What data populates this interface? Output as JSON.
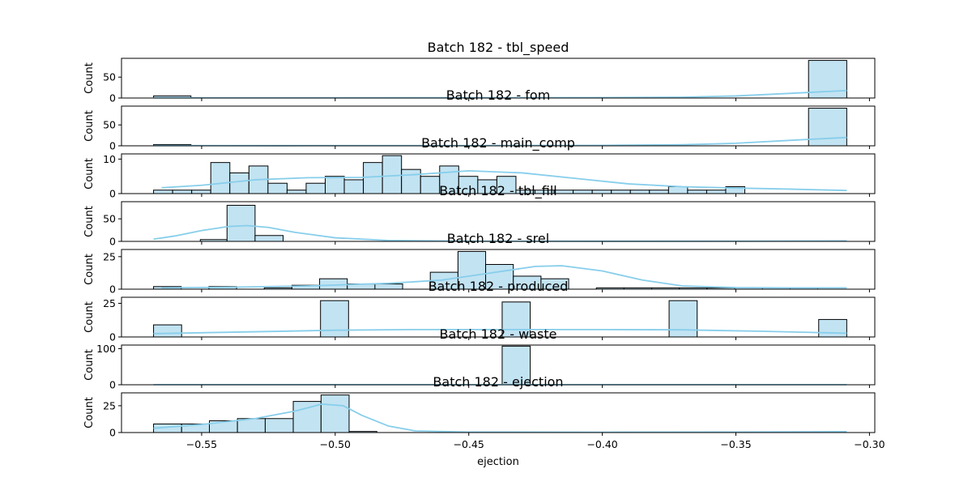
{
  "figure": {
    "xlabel": "ejection"
  },
  "chart_data": {
    "type": "bar",
    "subtype": "histogram-with-kde-stacked-panels",
    "shared_x": true,
    "xlim": [
      -0.58,
      -0.298
    ],
    "xticks": [
      {
        "v": -0.55,
        "label": "−0.55"
      },
      {
        "v": -0.5,
        "label": "−0.50"
      },
      {
        "v": -0.45,
        "label": "−0.45"
      },
      {
        "v": -0.4,
        "label": "−0.40"
      },
      {
        "v": -0.35,
        "label": "−0.35"
      },
      {
        "v": -0.3,
        "label": "−0.30"
      }
    ],
    "colors": {
      "bar_fill": "#c2e3f2",
      "bar_edge": "#000000",
      "kde": "#87ceeb"
    },
    "panels": [
      {
        "title": "Batch 182 - tbl_speed",
        "ylabel": "Count",
        "ylim": [
          0,
          95
        ],
        "yticks": [
          {
            "v": 0,
            "label": "0"
          },
          {
            "v": 50,
            "label": "50"
          }
        ],
        "bins": [
          {
            "x0": -0.568,
            "x1": -0.554,
            "count": 5
          },
          {
            "x0": -0.3228,
            "x1": -0.3085,
            "count": 90
          }
        ],
        "kde": [
          [
            -0.568,
            0.5
          ],
          [
            -0.52,
            0.5
          ],
          [
            -0.45,
            0.6
          ],
          [
            -0.4,
            0.9
          ],
          [
            -0.37,
            2
          ],
          [
            -0.35,
            5
          ],
          [
            -0.33,
            11
          ],
          [
            -0.3085,
            18
          ]
        ]
      },
      {
        "title": "Batch 182 - fom",
        "ylabel": "Count",
        "ylim": [
          0,
          95
        ],
        "yticks": [
          {
            "v": 0,
            "label": "0"
          },
          {
            "v": 50,
            "label": "50"
          }
        ],
        "bins": [
          {
            "x0": -0.568,
            "x1": -0.554,
            "count": 3
          },
          {
            "x0": -0.3228,
            "x1": -0.3085,
            "count": 90
          }
        ],
        "kde": [
          [
            -0.568,
            0.5
          ],
          [
            -0.52,
            0.4
          ],
          [
            -0.45,
            0.5
          ],
          [
            -0.4,
            1
          ],
          [
            -0.37,
            2.5
          ],
          [
            -0.35,
            6
          ],
          [
            -0.33,
            13
          ],
          [
            -0.3085,
            20
          ]
        ]
      },
      {
        "title": "Batch 182 - main_comp",
        "ylabel": "Count",
        "ylim": [
          0,
          11.5
        ],
        "yticks": [
          {
            "v": 0,
            "label": "0"
          },
          {
            "v": 10,
            "label": "10"
          }
        ],
        "bin_start": -0.568,
        "bin_width": 0.00714,
        "counts": [
          1,
          1,
          1,
          9,
          6,
          8,
          3,
          1,
          3,
          5,
          4,
          9,
          11,
          7,
          5,
          8,
          5,
          4,
          5,
          1,
          1,
          1,
          1,
          1,
          1,
          1,
          1,
          2,
          1,
          1,
          2
        ],
        "kde": [
          [
            -0.565,
            1.7
          ],
          [
            -0.55,
            2.4
          ],
          [
            -0.53,
            4.0
          ],
          [
            -0.51,
            4.6
          ],
          [
            -0.49,
            4.7
          ],
          [
            -0.47,
            5.5
          ],
          [
            -0.45,
            6.6
          ],
          [
            -0.43,
            6.0
          ],
          [
            -0.41,
            4.4
          ],
          [
            -0.39,
            2.8
          ],
          [
            -0.37,
            2.0
          ],
          [
            -0.35,
            1.6
          ],
          [
            -0.33,
            1.3
          ],
          [
            -0.3085,
            0.9
          ]
        ]
      },
      {
        "title": "Batch 182 - tbl_fill",
        "ylabel": "Count",
        "ylim": [
          0,
          88
        ],
        "yticks": [
          {
            "v": 0,
            "label": "0"
          },
          {
            "v": 50,
            "label": "50"
          }
        ],
        "bins": [
          {
            "x0": -0.5505,
            "x1": -0.5405,
            "count": 4
          },
          {
            "x0": -0.5405,
            "x1": -0.53,
            "count": 80
          },
          {
            "x0": -0.53,
            "x1": -0.5195,
            "count": 13
          }
        ],
        "kde": [
          [
            -0.568,
            5
          ],
          [
            -0.56,
            12
          ],
          [
            -0.55,
            24
          ],
          [
            -0.54,
            33
          ],
          [
            -0.533,
            35
          ],
          [
            -0.525,
            31
          ],
          [
            -0.515,
            20
          ],
          [
            -0.5,
            8
          ],
          [
            -0.48,
            2
          ],
          [
            -0.45,
            0.5
          ],
          [
            -0.4,
            0.3
          ],
          [
            -0.35,
            0.5
          ],
          [
            -0.3085,
            1
          ]
        ]
      },
      {
        "title": "Batch 182 - srel",
        "ylabel": "Count",
        "ylim": [
          0,
          30.5
        ],
        "yticks": [
          {
            "v": 0,
            "label": "0"
          },
          {
            "v": 25,
            "label": "25"
          }
        ],
        "bin_start": -0.568,
        "bin_width": 0.01036,
        "counts": [
          2,
          0,
          2,
          0,
          1,
          3,
          8,
          4,
          4,
          0,
          13,
          29,
          19,
          10,
          8,
          0,
          1,
          1,
          1,
          1,
          1,
          1,
          1,
          1
        ],
        "kde": [
          [
            -0.565,
            1
          ],
          [
            -0.54,
            1.5
          ],
          [
            -0.51,
            2.5
          ],
          [
            -0.48,
            4.5
          ],
          [
            -0.46,
            7
          ],
          [
            -0.44,
            13
          ],
          [
            -0.425,
            17.5
          ],
          [
            -0.415,
            18
          ],
          [
            -0.4,
            14
          ],
          [
            -0.385,
            7
          ],
          [
            -0.37,
            2.5
          ],
          [
            -0.35,
            1.2
          ],
          [
            -0.33,
            1
          ],
          [
            -0.3085,
            1
          ]
        ]
      },
      {
        "title": "Batch 182 - produced",
        "ylabel": "Count",
        "ylim": [
          0,
          29.5
        ],
        "yticks": [
          {
            "v": 0,
            "label": "0"
          },
          {
            "v": 25,
            "label": "25"
          }
        ],
        "bins": [
          {
            "x0": -0.568,
            "x1": -0.5575,
            "count": 9
          },
          {
            "x0": -0.5055,
            "x1": -0.495,
            "count": 27
          },
          {
            "x0": -0.4375,
            "x1": -0.427,
            "count": 26
          },
          {
            "x0": -0.375,
            "x1": -0.3645,
            "count": 27
          },
          {
            "x0": -0.319,
            "x1": -0.3085,
            "count": 13
          }
        ],
        "kde": [
          [
            -0.568,
            2.5
          ],
          [
            -0.54,
            3.5
          ],
          [
            -0.5,
            5
          ],
          [
            -0.47,
            5.5
          ],
          [
            -0.44,
            5.5
          ],
          [
            -0.4,
            5.5
          ],
          [
            -0.37,
            5.3
          ],
          [
            -0.34,
            4.2
          ],
          [
            -0.3085,
            2.8
          ]
        ]
      },
      {
        "title": "Batch 182 - waste",
        "ylabel": "Count",
        "ylim": [
          0,
          110
        ],
        "yticks": [
          {
            "v": 0,
            "label": "0"
          },
          {
            "v": 100,
            "label": "100"
          }
        ],
        "bins": [
          {
            "x0": -0.4375,
            "x1": -0.427,
            "count": 107
          }
        ],
        "kde": [
          [
            -0.568,
            0.2
          ],
          [
            -0.3085,
            0.2
          ]
        ]
      },
      {
        "title": "Batch 182 - ejection",
        "ylabel": "Count",
        "ylim": [
          0,
          37
        ],
        "yticks": [
          {
            "v": 0,
            "label": "0"
          },
          {
            "v": 25,
            "label": "25"
          }
        ],
        "bins": [
          {
            "x0": -0.568,
            "x1": -0.5575,
            "count": 8
          },
          {
            "x0": -0.5575,
            "x1": -0.5471,
            "count": 8
          },
          {
            "x0": -0.5471,
            "x1": -0.5366,
            "count": 11
          },
          {
            "x0": -0.5366,
            "x1": -0.5262,
            "count": 13
          },
          {
            "x0": -0.5262,
            "x1": -0.5157,
            "count": 13
          },
          {
            "x0": -0.5157,
            "x1": -0.5053,
            "count": 29
          },
          {
            "x0": -0.5053,
            "x1": -0.4948,
            "count": 35
          },
          {
            "x0": -0.4948,
            "x1": -0.4844,
            "count": 1
          }
        ],
        "kde": [
          [
            -0.568,
            4
          ],
          [
            -0.55,
            7.5
          ],
          [
            -0.53,
            13
          ],
          [
            -0.515,
            20
          ],
          [
            -0.505,
            26.5
          ],
          [
            -0.497,
            25
          ],
          [
            -0.49,
            16
          ],
          [
            -0.48,
            6
          ],
          [
            -0.47,
            1.5
          ],
          [
            -0.45,
            0.5
          ],
          [
            -0.4,
            0.3
          ],
          [
            -0.35,
            0.5
          ],
          [
            -0.3085,
            0.8
          ]
        ]
      }
    ]
  }
}
